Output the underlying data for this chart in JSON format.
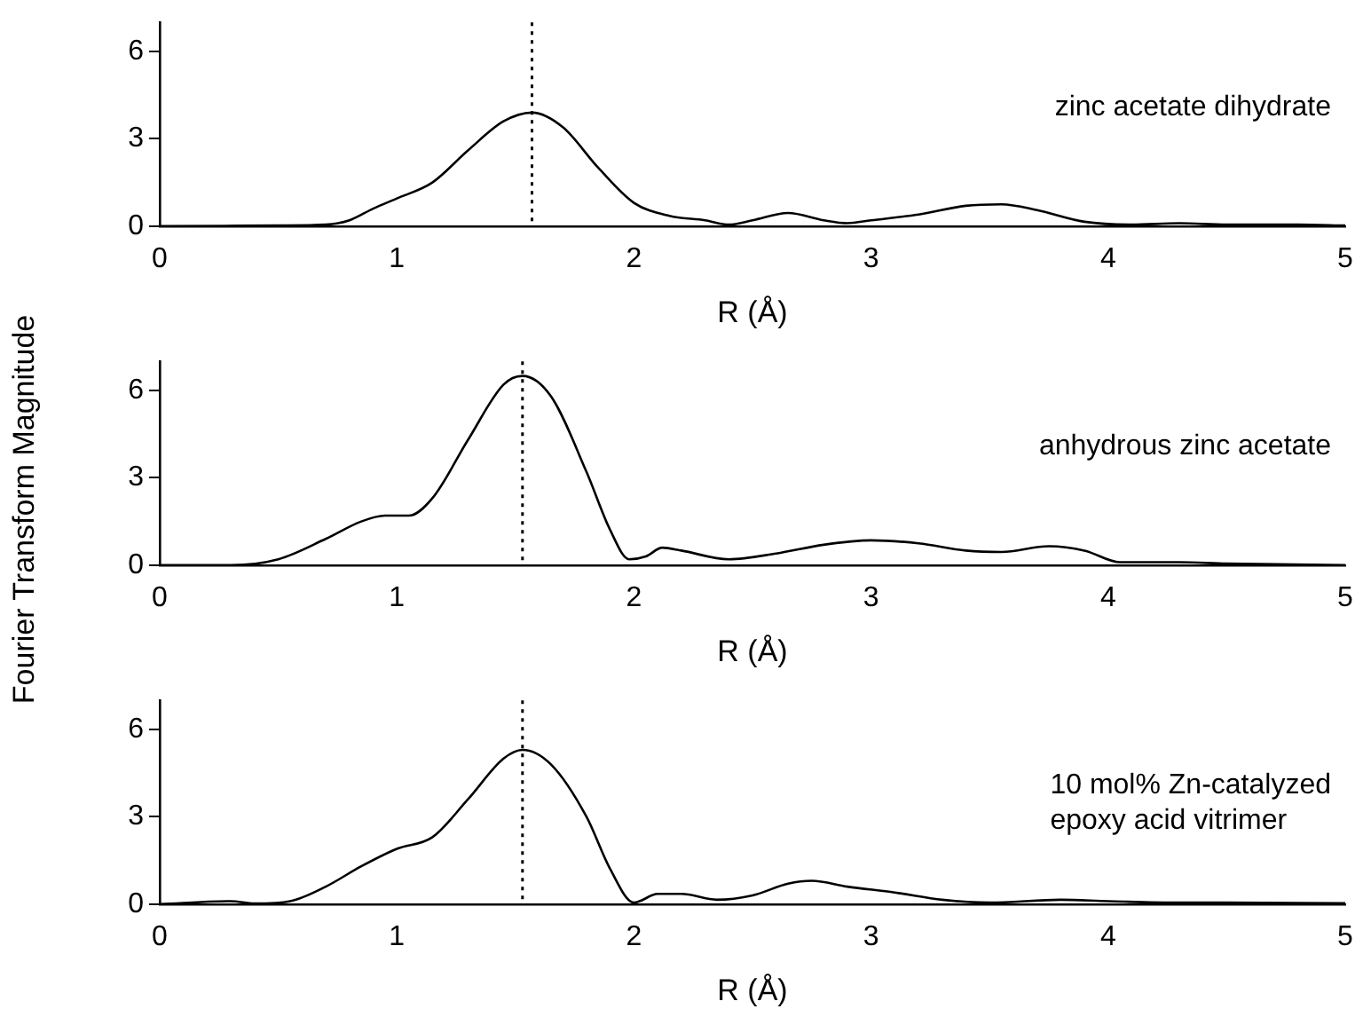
{
  "chart_data": [
    {
      "type": "line",
      "xlabel": "R (Å)",
      "annotations": [
        "zinc acetate dihydrate"
      ],
      "xlim": [
        0,
        5
      ],
      "xticks": [
        0,
        1,
        2,
        3,
        4,
        5
      ],
      "ylim": [
        0,
        7
      ],
      "yticks": [
        0,
        3,
        6
      ],
      "grid": false,
      "legend": false,
      "ref_lines": [
        {
          "axis": "x",
          "value": 1.57,
          "color": "#000000",
          "line_style": "dotted"
        }
      ],
      "series": [
        {
          "color": "#000000",
          "x": [
            0,
            0.5,
            0.7,
            0.8,
            0.9,
            1.0,
            1.15,
            1.3,
            1.45,
            1.57,
            1.7,
            1.85,
            2.0,
            2.15,
            2.3,
            2.4,
            2.5,
            2.65,
            2.8,
            2.9,
            3.0,
            3.2,
            3.4,
            3.55,
            3.7,
            3.9,
            4.1,
            4.3,
            4.5,
            4.8,
            5
          ],
          "values": [
            0,
            0.02,
            0.05,
            0.2,
            0.6,
            0.95,
            1.5,
            2.6,
            3.6,
            3.9,
            3.4,
            2.0,
            0.8,
            0.35,
            0.2,
            0.05,
            0.2,
            0.45,
            0.2,
            0.1,
            0.2,
            0.4,
            0.7,
            0.75,
            0.55,
            0.15,
            0.05,
            0.1,
            0.05,
            0.05,
            0.02
          ]
        }
      ]
    },
    {
      "type": "line",
      "xlabel": "R (Å)",
      "ylabel": "Fourier Transform Magnitude",
      "annotations": [
        "anhydrous zinc acetate"
      ],
      "xlim": [
        0,
        5
      ],
      "xticks": [
        0,
        1,
        2,
        3,
        4,
        5
      ],
      "ylim": [
        0,
        7
      ],
      "yticks": [
        0,
        3,
        6
      ],
      "grid": false,
      "legend": false,
      "ref_lines": [
        {
          "axis": "x",
          "value": 1.53,
          "color": "#000000",
          "line_style": "dotted"
        }
      ],
      "series": [
        {
          "color": "#000000",
          "x": [
            0,
            0.3,
            0.5,
            0.7,
            0.85,
            0.95,
            1.05,
            1.15,
            1.3,
            1.45,
            1.53,
            1.65,
            1.8,
            1.9,
            1.98,
            2.05,
            2.12,
            2.2,
            2.4,
            2.6,
            2.8,
            3.0,
            3.2,
            3.4,
            3.55,
            3.75,
            3.9,
            4.05,
            4.3,
            4.5,
            5
          ],
          "values": [
            0,
            0,
            0.2,
            0.9,
            1.5,
            1.7,
            1.7,
            2.3,
            4.3,
            6.2,
            6.5,
            5.8,
            3.2,
            1.2,
            0.2,
            0.3,
            0.6,
            0.5,
            0.2,
            0.4,
            0.7,
            0.85,
            0.75,
            0.5,
            0.45,
            0.65,
            0.5,
            0.1,
            0.1,
            0.05,
            0
          ]
        }
      ]
    },
    {
      "type": "line",
      "xlabel": "R (Å)",
      "annotations": [
        "10 mol% Zn-catalyzed epoxy acid vitrimer"
      ],
      "xlim": [
        0,
        5
      ],
      "xticks": [
        0,
        1,
        2,
        3,
        4,
        5
      ],
      "ylim": [
        0,
        7
      ],
      "yticks": [
        0,
        3,
        6
      ],
      "grid": false,
      "legend": false,
      "ref_lines": [
        {
          "axis": "x",
          "value": 1.53,
          "color": "#000000",
          "line_style": "dotted"
        }
      ],
      "series": [
        {
          "color": "#000000",
          "x": [
            0,
            0.3,
            0.4,
            0.55,
            0.7,
            0.85,
            1.0,
            1.15,
            1.3,
            1.45,
            1.53,
            1.65,
            1.8,
            1.9,
            2.0,
            2.1,
            2.2,
            2.35,
            2.5,
            2.65,
            2.75,
            2.9,
            3.1,
            3.3,
            3.5,
            3.8,
            4.0,
            4.3,
            4.5,
            5
          ],
          "values": [
            0,
            0.1,
            0.02,
            0.1,
            0.6,
            1.3,
            1.9,
            2.3,
            3.6,
            5.0,
            5.3,
            4.8,
            3.0,
            1.2,
            0.05,
            0.35,
            0.35,
            0.15,
            0.3,
            0.7,
            0.8,
            0.6,
            0.4,
            0.15,
            0.05,
            0.15,
            0.1,
            0.05,
            0.05,
            0.03
          ]
        }
      ]
    }
  ]
}
